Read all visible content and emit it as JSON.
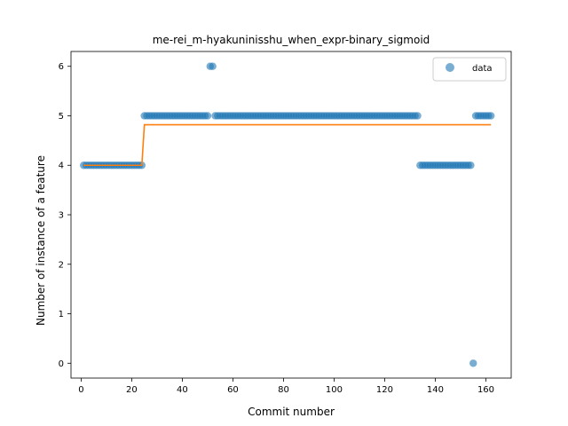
{
  "chart_data": {
    "type": "scatter",
    "title": "me-rei_m-hyakuninisshu_when_expr-binary_sigmoid",
    "xlabel": "Commit number",
    "ylabel": "Number of instance of a feature",
    "xlim": [
      -4,
      170
    ],
    "ylim": [
      -0.3,
      6.3
    ],
    "xticks": [
      0,
      20,
      40,
      60,
      80,
      100,
      120,
      140,
      160
    ],
    "yticks": [
      0,
      1,
      2,
      3,
      4,
      5,
      6
    ],
    "legend": {
      "position": "top-right",
      "entries": [
        "data"
      ]
    },
    "grid": false,
    "series": [
      {
        "name": "data",
        "kind": "scatter",
        "color": "#1f77b4",
        "segments": [
          {
            "x_start": 1,
            "x_end": 24,
            "y": 4
          },
          {
            "x_start": 25,
            "x_end": 50,
            "y": 5
          },
          {
            "x_start": 51,
            "x_end": 52,
            "y": 6
          },
          {
            "x_start": 53,
            "x_end": 133,
            "y": 5
          },
          {
            "x_start": 134,
            "x_end": 154,
            "y": 4
          },
          {
            "x_start": 155,
            "x_end": 155,
            "y": 0
          },
          {
            "x_start": 156,
            "x_end": 162,
            "y": 5
          }
        ]
      },
      {
        "kind": "line",
        "color": "#ff7f0e",
        "points": [
          [
            1,
            4.0
          ],
          [
            24,
            4.0
          ],
          [
            25,
            4.82
          ],
          [
            162,
            4.82
          ]
        ]
      }
    ]
  }
}
